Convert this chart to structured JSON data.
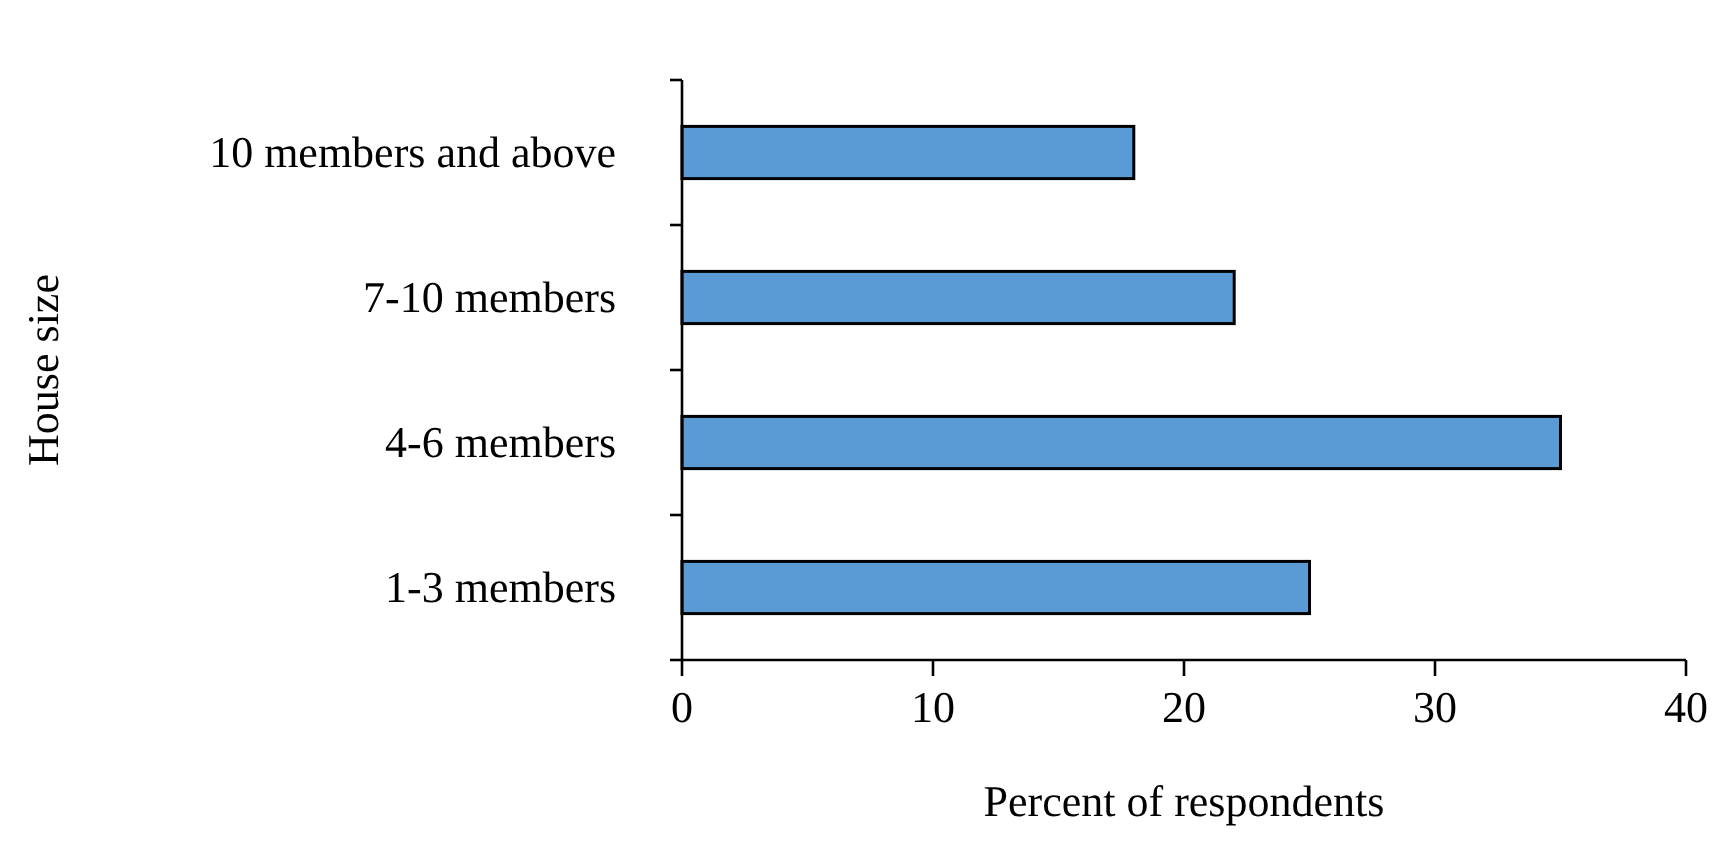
{
  "chart_data": {
    "type": "bar",
    "orientation": "horizontal",
    "xlabel": "Percent of respondents",
    "ylabel": "House size",
    "categories": [
      "10 members and above",
      "7-10 members",
      "4-6 members",
      "1-3 members"
    ],
    "values": [
      18,
      22,
      35,
      25
    ],
    "color": "#5b9bd5",
    "xlim": [
      0,
      40
    ],
    "xticks": [
      0,
      10,
      20,
      30,
      40
    ],
    "grid": false
  }
}
